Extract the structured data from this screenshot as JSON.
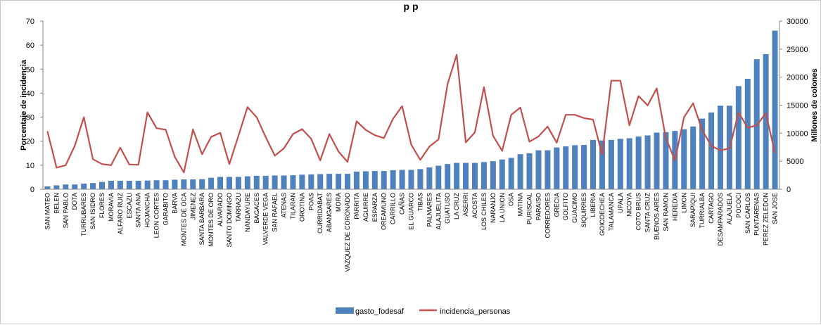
{
  "chart_data": {
    "type": "bar",
    "title": "                                             ",
    "visible_title_fragment": "p     p",
    "categories": [
      "SAN MATEO",
      "BELEN",
      "SAN PABLO",
      "DOTA",
      "TURRUBARES",
      "SAN ISIDRO",
      "FLORES",
      "MORAVIA",
      "ALFARO RUIZ",
      "ESCAZU",
      "SANTA ANA",
      "HOJANCHA",
      "LEON CORTES",
      "GARABITO",
      "BARVA",
      "MONTES DE OCA",
      "JIMENEZ",
      "SANTA BARBARA",
      "MONTES DE ORO",
      "ALVARADO",
      "SANTO DOMINGO",
      "TARRAZU",
      "NANDAYURE",
      "BAGACES",
      "VALVERDE VEGA",
      "SAN RAFAEL",
      "ATENAS",
      "TILARAN",
      "OROTINA",
      "POAS",
      "CURRIDABAT",
      "ABANGARES",
      "MORA",
      "VAZQUEZ DE CORONADO",
      "PARRITA",
      "AGUIRRE",
      "ESPARZA",
      "OREAMUNO",
      "CARRILLO",
      "CAÑAS",
      "EL GUARCO",
      "TIBAS",
      "PALMARES",
      "ALAJUELITA",
      "GUATUSO",
      "LA CRUZ",
      "ASERRI",
      "ACOSTA",
      "LOS CHILES",
      "NARANJO",
      "LA UNION",
      "OSA",
      "MATINA",
      "PURISCAL",
      "PARAISO",
      "CORREDORES",
      "GRECIA",
      "GOLFITO",
      "GUACIMO",
      "SIQUIRRES",
      "LIBERIA",
      "GOICOECHEA",
      "TALAMANCA",
      "UPALA",
      "NICOYA",
      "COTO BRUS",
      "SANTA CRUZ",
      "BUENOS AIRES",
      "SAN RAMON",
      "HEREDIA",
      "LIMON",
      "SARAPIQUI",
      "TURRIALBA",
      "CARTAGO",
      "DESAMPARADOS",
      "ALAJUELA",
      "POCOCI",
      "SAN CARLOS",
      "PUNTARENAS",
      "PEREZ ZELEDON",
      "SAN JOSE"
    ],
    "series": [
      {
        "name": "gasto_fodesaf",
        "axis": "right",
        "kind": "bar",
        "color": "#4f81bd",
        "values": [
          500,
          700,
          850,
          850,
          1000,
          1100,
          1300,
          1500,
          1500,
          1500,
          1500,
          1550,
          1600,
          1600,
          1700,
          1750,
          1750,
          1800,
          2050,
          2200,
          2200,
          2200,
          2300,
          2400,
          2400,
          2450,
          2450,
          2500,
          2600,
          2650,
          2700,
          2750,
          2750,
          2750,
          3150,
          3200,
          3250,
          3250,
          3400,
          3450,
          3450,
          3600,
          3900,
          4200,
          4500,
          4700,
          4700,
          4700,
          4850,
          5000,
          5300,
          5600,
          6250,
          6400,
          6950,
          6950,
          7450,
          7650,
          7850,
          7900,
          8800,
          8700,
          8800,
          9000,
          9100,
          9400,
          9600,
          10100,
          10200,
          10400,
          10700,
          11200,
          12600,
          13700,
          14900,
          14900,
          18400,
          19700,
          23200,
          24100,
          28300
        ]
      },
      {
        "name": "incidencia_personas",
        "axis": "left",
        "kind": "line",
        "color": "#c0504d",
        "values": [
          24,
          9,
          10,
          18,
          30,
          12.5,
          10.5,
          10,
          17.3,
          10.3,
          10.2,
          32,
          25.4,
          24.8,
          13.5,
          7,
          24.9,
          14.6,
          21.8,
          23.5,
          10.5,
          22.2,
          34.2,
          30,
          21.7,
          14,
          17,
          23,
          25,
          21,
          12,
          23,
          15.7,
          11.4,
          28.3,
          24.7,
          22.5,
          21.3,
          29.3,
          34.6,
          18.6,
          12.2,
          17.8,
          20.7,
          43.8,
          56,
          19.5,
          23.7,
          42.5,
          22.3,
          16,
          31,
          34,
          19.8,
          22,
          26.1,
          19.4,
          31,
          31,
          29.6,
          29,
          14.4,
          45.2,
          45.2,
          26.6,
          38.8,
          34.9,
          42,
          21.4,
          12,
          30,
          35.8,
          24.6,
          18,
          16.2,
          17,
          31.9,
          25.6,
          26.6,
          31.7,
          15.1
        ]
      }
    ],
    "ylabel_left": "Porcentaje de incidencia",
    "ylabel_right": "Millones de colones",
    "ylim_left": [
      0,
      70
    ],
    "ylim_right": [
      0,
      30000
    ],
    "yticks_left": [
      "0",
      "10",
      "20",
      "30",
      "40",
      "50",
      "60",
      "70"
    ],
    "yticks_right": [
      "0",
      "5000",
      "10000",
      "15000",
      "20000",
      "25000",
      "30000"
    ],
    "grid": false,
    "legend_position": "bottom"
  }
}
